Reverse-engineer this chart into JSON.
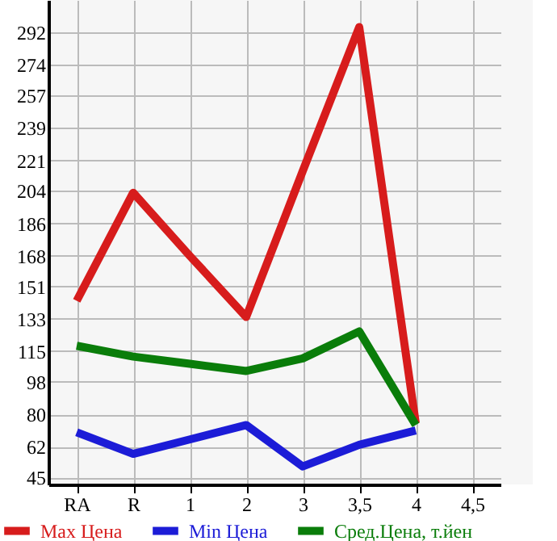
{
  "chart_data": {
    "type": "line",
    "categories": [
      "RA",
      "R",
      "1",
      "2",
      "3",
      "3,5",
      "4",
      "4,5"
    ],
    "series": [
      {
        "name": "Max Цена",
        "color": "#d71c1c",
        "values": [
          143,
          203,
          168,
          134,
          215,
          295,
          75,
          null
        ]
      },
      {
        "name": "Min Цена",
        "color": "#1c1cd7",
        "values": [
          70,
          58,
          66,
          74,
          51,
          63,
          71,
          null
        ]
      },
      {
        "name": "Сред.Цена, т.йен",
        "color": "#0a7d0a",
        "values": [
          118,
          112,
          108,
          104,
          111,
          126,
          74,
          null
        ]
      }
    ],
    "ylim": [
      41,
      310
    ],
    "yticks": [
      45,
      62,
      80,
      98,
      115,
      133,
      151,
      168,
      186,
      204,
      221,
      239,
      257,
      274,
      292
    ],
    "grid": true,
    "legend": "bottom",
    "marker": "none",
    "line_style": "solid"
  }
}
